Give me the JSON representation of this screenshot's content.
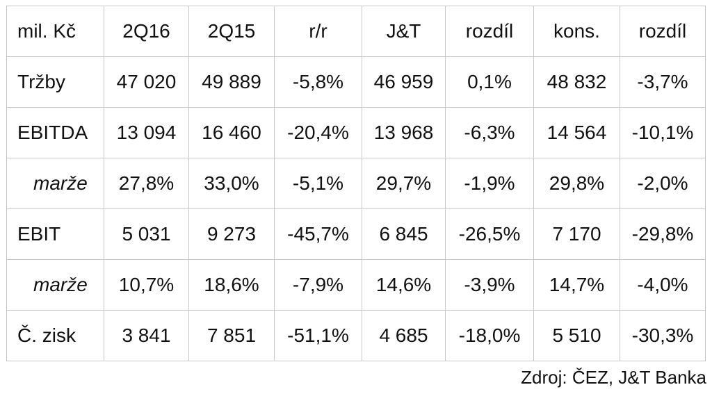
{
  "table": {
    "headers": [
      "mil. Kč",
      "2Q16",
      "2Q15",
      "r/r",
      "J&T",
      "rozdíl",
      "kons.",
      "rozdíl"
    ],
    "rows": [
      {
        "label": "Tržby",
        "italic": false,
        "cells": [
          "47 020",
          "49 889",
          "-5,8%",
          "46 959",
          "0,1%",
          "48 832",
          "-3,7%"
        ]
      },
      {
        "label": "EBITDA",
        "italic": false,
        "cells": [
          "13 094",
          "16 460",
          "-20,4%",
          "13 968",
          "-6,3%",
          "14 564",
          "-10,1%"
        ]
      },
      {
        "label": "marže",
        "italic": true,
        "cells": [
          "27,8%",
          "33,0%",
          "-5,1%",
          "29,7%",
          "-1,9%",
          "29,8%",
          "-2,0%"
        ]
      },
      {
        "label": "EBIT",
        "italic": false,
        "cells": [
          "5 031",
          "9 273",
          "-45,7%",
          "6 845",
          "-26,5%",
          "7 170",
          "-29,8%"
        ]
      },
      {
        "label": "marže",
        "italic": true,
        "cells": [
          "10,7%",
          "18,6%",
          "-7,9%",
          "14,6%",
          "-3,9%",
          "14,7%",
          "-4,0%"
        ]
      },
      {
        "label": "Č. zisk",
        "italic": false,
        "cells": [
          "3 841",
          "7 851",
          "-51,1%",
          "4 685",
          "-18,0%",
          "5 510",
          "-30,3%"
        ]
      }
    ]
  },
  "source": "Zdroj: ČEZ, J&T Banka"
}
